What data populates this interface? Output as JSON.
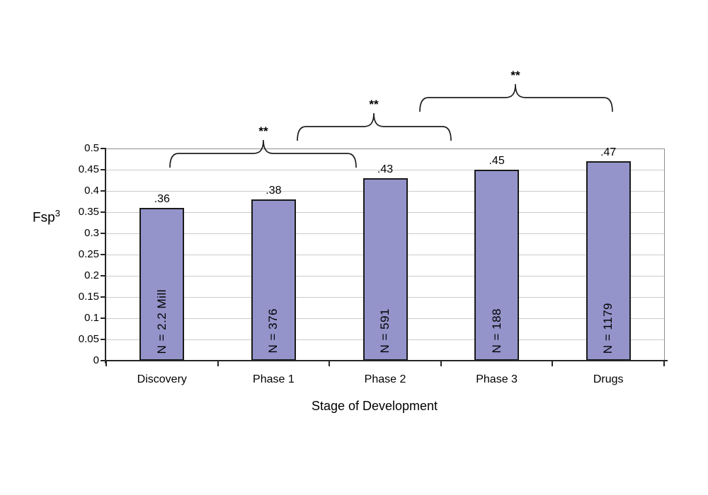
{
  "figure": {
    "background": "#ffffff"
  },
  "chart_data": {
    "type": "bar",
    "title": "",
    "xlabel": "Stage of Development",
    "ylabel_base": "Fsp",
    "ylabel_sup": "3",
    "categories": [
      "Discovery",
      "Phase 1",
      "Phase 2",
      "Phase 3",
      "Drugs"
    ],
    "values": [
      0.36,
      0.38,
      0.43,
      0.45,
      0.47
    ],
    "bar_value_labels": [
      ".36",
      ".38",
      ".43",
      ".45",
      ".47"
    ],
    "bar_n_labels": [
      "N = 2.2 Mill",
      "N = 376",
      "N = 591",
      "N = 188",
      "N = 1179"
    ],
    "ylim": [
      0,
      0.5
    ],
    "ytick_values": [
      0,
      0.05,
      0.1,
      0.15,
      0.2,
      0.25,
      0.3,
      0.35,
      0.4,
      0.45,
      0.5
    ],
    "ytick_labels": [
      "0",
      "0.05",
      "0.1",
      "0.15",
      "0.2",
      "0.25",
      "0.3",
      "0.35",
      "0.4",
      "0.45",
      "0.5"
    ],
    "grid": "horizontal",
    "legend": "none",
    "bar_color": "#9494CB",
    "bar_border_color": "#1a1a1a",
    "significance_braces": [
      {
        "label": "**",
        "x1": 240,
        "x2": 503,
        "tip_x": 372,
        "baseline_y": 217
      },
      {
        "label": "**",
        "x1": 420,
        "x2": 637,
        "tip_x": 528,
        "baseline_y": 179
      },
      {
        "label": "**",
        "x1": 593,
        "x2": 865,
        "tip_x": 728,
        "baseline_y": 138
      }
    ]
  }
}
